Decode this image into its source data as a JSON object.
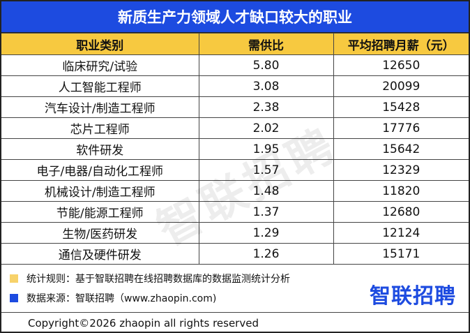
{
  "title": "新质生产力领域人才缺口较大的职业",
  "table": {
    "header": [
      "职业类别",
      "需供比",
      "平均招聘月薪（元）"
    ],
    "rows": [
      [
        "临床研究/试验",
        "5.80",
        "12650"
      ],
      [
        "人工智能工程师",
        "3.08",
        "20099"
      ],
      [
        "汽车设计/制造工程师",
        "2.38",
        "15428"
      ],
      [
        "芯片工程师",
        "2.02",
        "17776"
      ],
      [
        "软件研发",
        "1.95",
        "15642"
      ],
      [
        "电子/电器/自动化工程师",
        "1.57",
        "12329"
      ],
      [
        "机械设计/制造工程师",
        "1.48",
        "11820"
      ],
      [
        "节能/能源工程师",
        "1.37",
        "12680"
      ],
      [
        "生物/医药研发",
        "1.29",
        "12124"
      ],
      [
        "通信及硬件研发",
        "1.26",
        "15171"
      ]
    ]
  },
  "notes": [
    "统计规则：基于智联招聘在线招聘数据库的数据监测统计分析",
    "数据来源：智联招聘（www.zhaopin.com)"
  ],
  "logo": "智联招聘",
  "watermark": "智联招聘",
  "copyright": "Copyright©2026 zhaopin all rights reserved"
}
